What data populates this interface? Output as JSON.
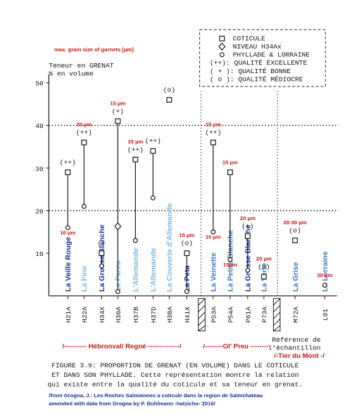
{
  "chart_data": {
    "type": "dot",
    "subtitle": "max. grain size of garnets [µm]",
    "y_label": [
      "Teneur en GRENAT",
      "% en volume"
    ],
    "categories": [
      "H21A",
      "H22A",
      "H34X",
      "H36A",
      "H37B",
      "H37D",
      "H38A",
      "H41X",
      "P53A",
      "P54A",
      "P61A",
      "P73A",
      "M72A",
      "L01"
    ],
    "series": [
      {
        "name": "COTICULE",
        "marker": "square",
        "color": "#111111",
        "values": [
          29,
          36,
          10,
          41,
          32,
          34,
          46,
          10,
          36,
          29,
          14,
          4.5,
          13,
          null
        ]
      },
      {
        "name": "NIVEAU H34Ax",
        "marker": "diamond",
        "color": "#111111",
        "values": [
          null,
          null,
          null,
          16.3,
          null,
          null,
          null,
          null,
          null,
          null,
          null,
          null,
          null,
          null
        ]
      },
      {
        "name": "PHYLLADE & LORRAINE",
        "marker": "circle",
        "color": "#111111",
        "values": [
          16,
          21,
          7,
          1,
          13,
          23,
          null,
          1,
          15,
          8.5,
          6,
          null,
          null,
          2.5
        ]
      }
    ],
    "quality": [
      "(++)",
      "(++)",
      "(+",
      "(+)",
      "(++)",
      "(++)",
      "(o)",
      "(o)",
      "(++)",
      null,
      "(+)",
      "(o)",
      "(o)",
      null
    ],
    "grain_size": [
      null,
      "20 µm",
      null,
      "15 µm",
      "15 µm",
      null,
      null,
      "15 µm",
      "15 µm",
      "15 µm",
      "20 µm",
      "20 µm",
      "20-30 µm",
      "30 µm"
    ],
    "grain_size_low": [
      "10 µm",
      null,
      null,
      null,
      null,
      null,
      null,
      null,
      "10 µm",
      "15µm",
      null,
      null,
      null,
      null
    ],
    "names": [
      "La Veille Rouge",
      "La Fine",
      "La Grosse Blanche",
      "La Pareu",
      "L'Allemande",
      "L'Allemande",
      "La Couverte d'Allemande",
      "La Peta",
      "La Veinette",
      "La Petite Blanche",
      "La Grosse Blanche",
      "La Verte",
      "La Grise",
      "La Lorraine"
    ],
    "name_colors": [
      "#1a2f9a",
      "#7ab8e0",
      "#1a2f9a",
      "#7ab8e0",
      "#7ab8e0",
      "#7ab8e0",
      "#7ab8e0",
      "#1a2f9a",
      "#3a78c8",
      "#3a78c8",
      "#1a2f9a",
      "#3a78c8",
      "#3a78c8",
      "#3a78c8"
    ],
    "legend_quality": [
      "(++): QUALITÉ EXCELLENTE",
      "( + ): QUALITÉ BONNE",
      "( o ): QUALITÉ MÉDIOCRE"
    ],
    "ylim": [
      0,
      52
    ],
    "yticks": [
      10,
      20,
      30,
      40,
      50
    ],
    "dotted_grid": [
      20,
      40
    ],
    "regions": [
      "/---------- Hébronval/ Regné --------------/",
      "/--------Ol' Preu --------",
      "/-Tier du Mont -/"
    ],
    "x_label": [
      "Référence de",
      "l'échantillon"
    ],
    "caption": [
      "FIGURE 3.9: PROPORTION DE GRENAT (EN VOLUME) DANS LE COTICULE",
      "ET DANS SON PHYLLADE.  Cette représentation montre la relation",
      "qui existe entre la qualité du coticule et sa teneur en grenat."
    ],
    "source": [
      "/from Grogna, J.: Les Roches Salmiennes a coticule dans la region de Salmchateau",
      "amended with data from Grogna by P. Buhlmann -hatzicho- 2016/"
    ]
  }
}
